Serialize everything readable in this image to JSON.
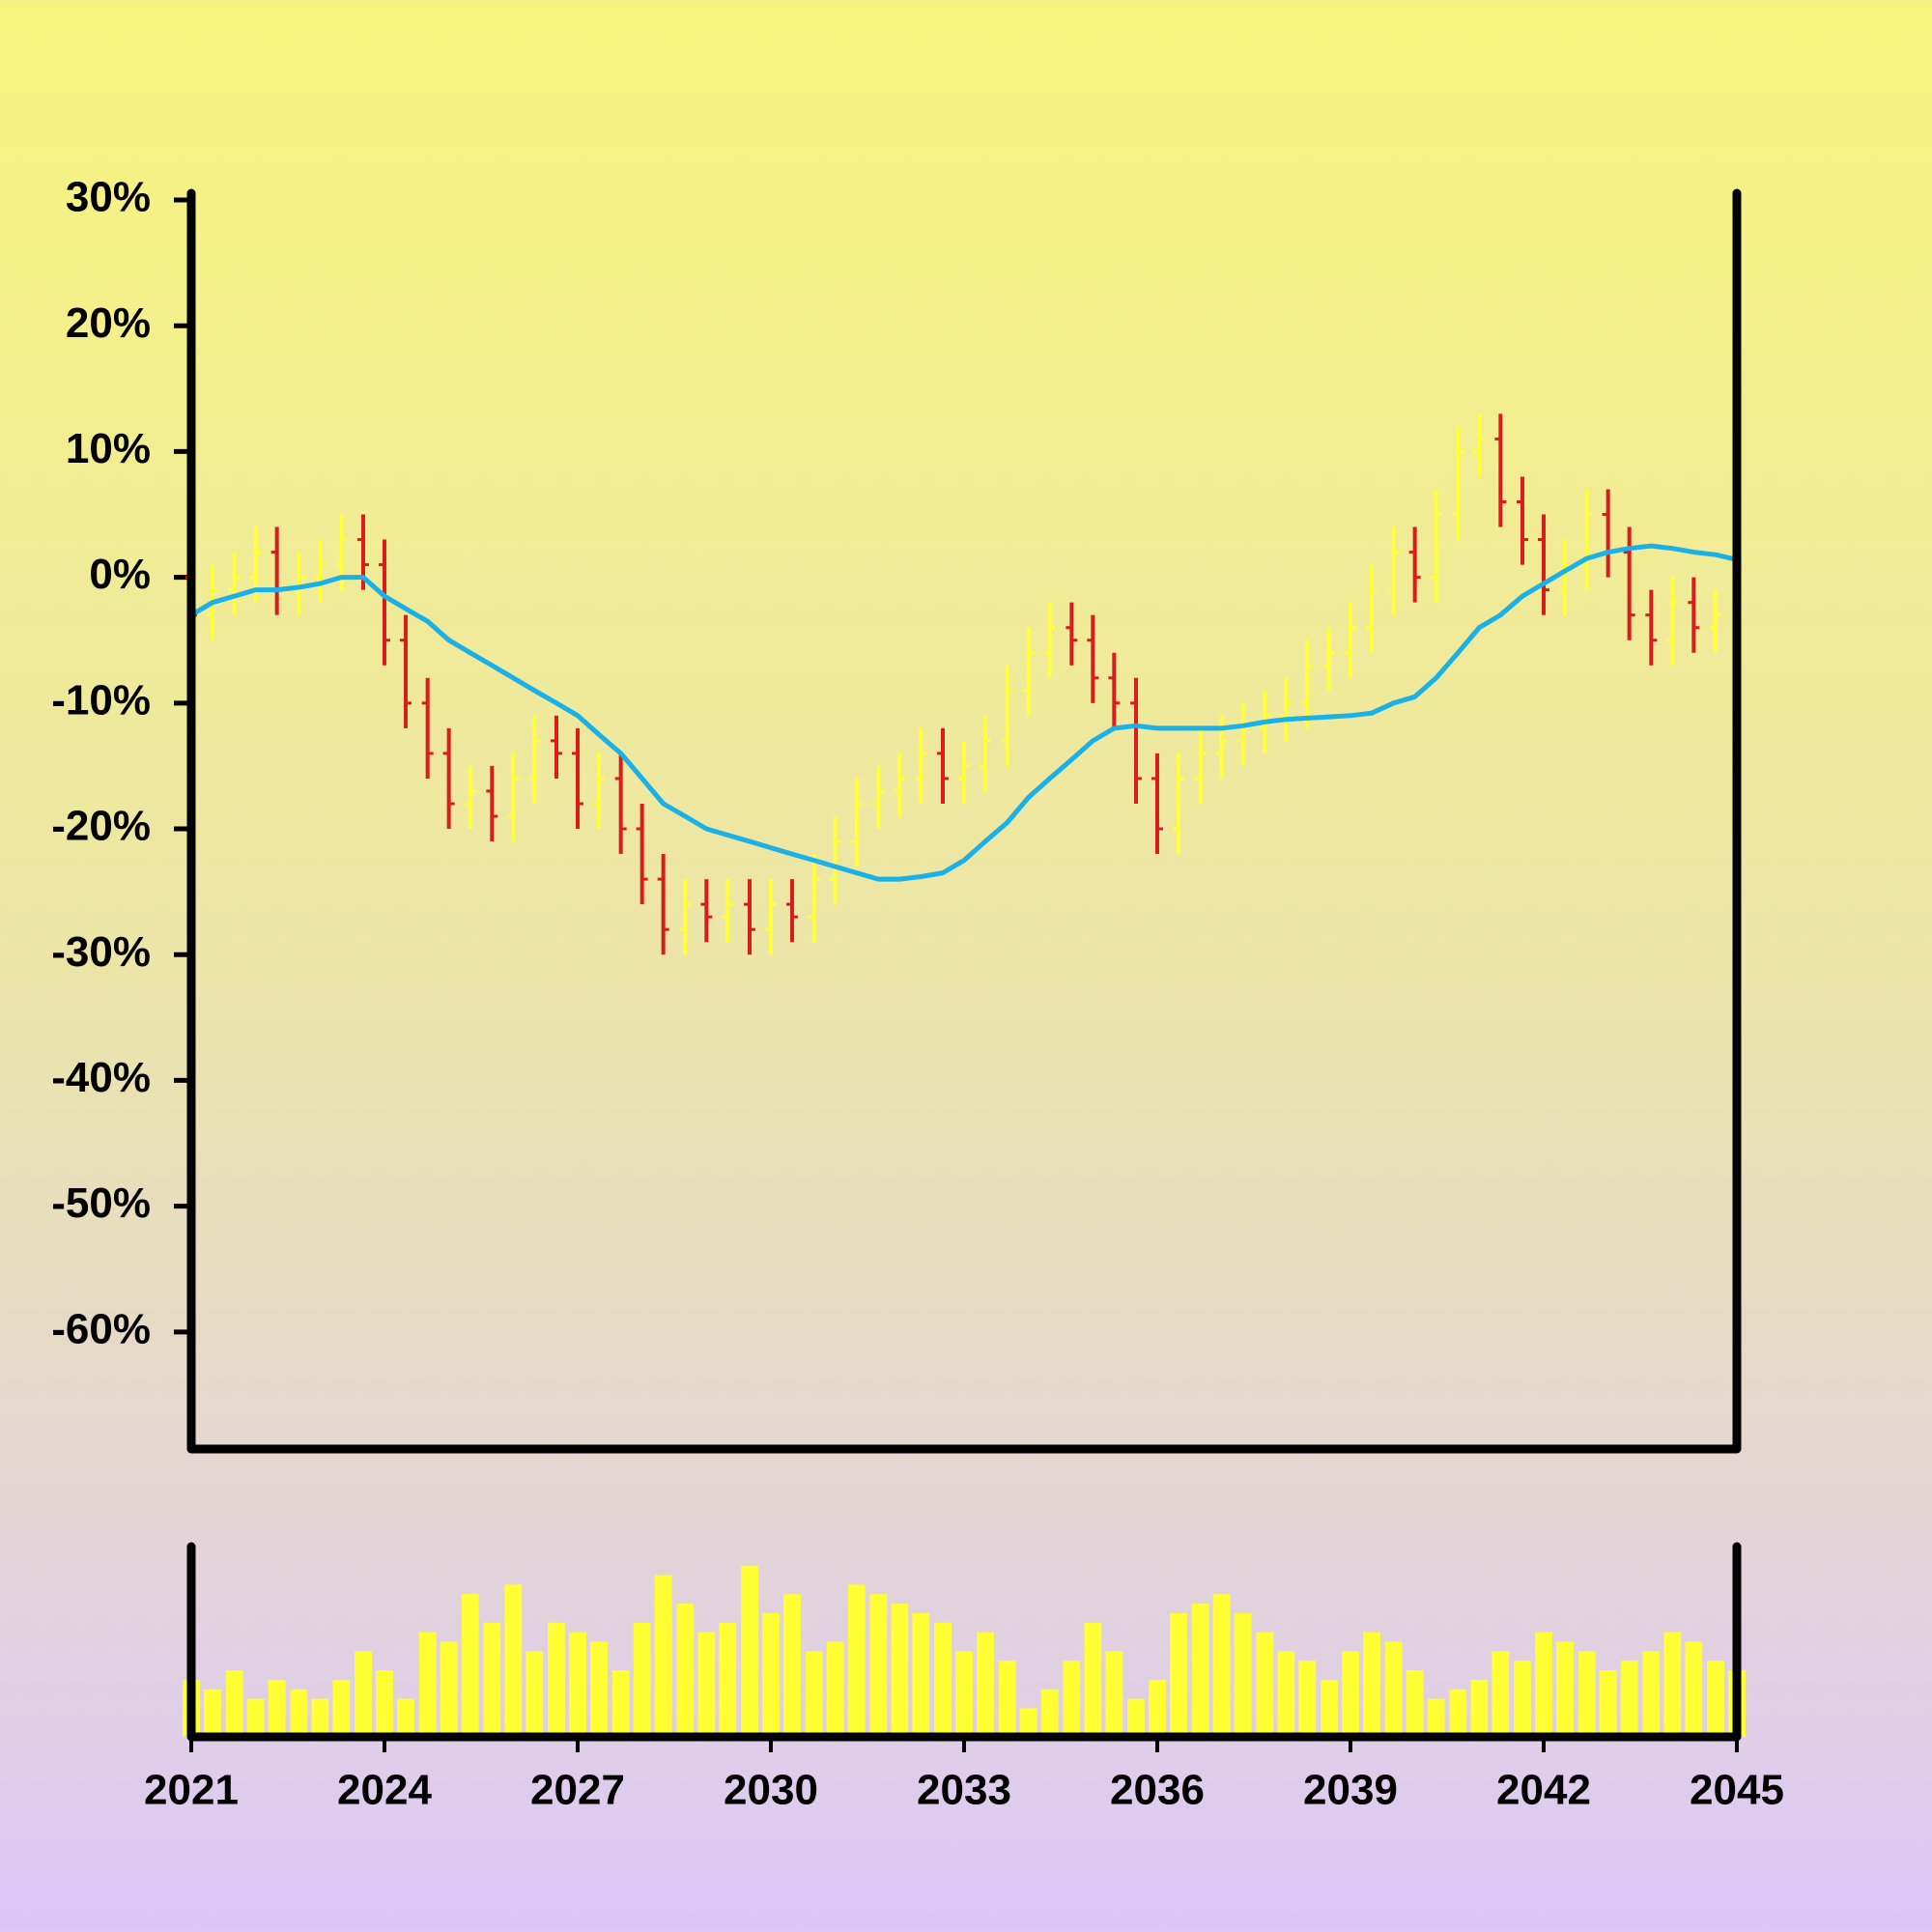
{
  "chart_data": {
    "type": "ohlc",
    "x": [
      2021,
      2021.33,
      2021.67,
      2022,
      2022.33,
      2022.67,
      2023,
      2023.33,
      2023.67,
      2024,
      2024.33,
      2024.67,
      2025,
      2025.33,
      2025.67,
      2026,
      2026.33,
      2026.67,
      2027,
      2027.33,
      2027.67,
      2028,
      2028.33,
      2028.67,
      2029,
      2029.33,
      2029.67,
      2030,
      2030.33,
      2030.67,
      2031,
      2031.33,
      2031.67,
      2032,
      2032.33,
      2032.67,
      2033,
      2033.33,
      2033.67,
      2034,
      2034.33,
      2034.67,
      2035,
      2035.33,
      2035.67,
      2036,
      2036.33,
      2036.67,
      2037,
      2037.33,
      2037.67,
      2038,
      2038.33,
      2038.67,
      2039,
      2039.33,
      2039.67,
      2040,
      2040.33,
      2040.67,
      2041,
      2041.33,
      2041.67,
      2042,
      2042.33,
      2042.67,
      2043,
      2043.33,
      2043.67,
      2044,
      2044.33,
      2044.67,
      2045
    ],
    "open": [
      0,
      -3,
      -1,
      0,
      2,
      -1,
      0,
      1,
      3,
      1,
      -5,
      -10,
      -14,
      -18,
      -17,
      -19,
      -16,
      -13,
      -14,
      -18,
      -16,
      -20,
      -24,
      -28,
      -26,
      -27,
      -26,
      -28,
      -26,
      -27,
      -24,
      -21,
      -18,
      -17,
      -16,
      -14,
      -16,
      -15,
      -13,
      -9,
      -6,
      -4,
      -5,
      -8,
      -10,
      -16,
      -20,
      -16,
      -14,
      -13,
      -12,
      -11,
      -10,
      -7,
      -6,
      -4,
      -1,
      2,
      0,
      5,
      10,
      11,
      6,
      3,
      -1,
      1,
      5,
      2,
      -3,
      -5,
      -2,
      -4,
      -3
    ],
    "high": [
      2,
      1,
      2,
      4,
      4,
      2,
      3,
      5,
      5,
      3,
      -3,
      -8,
      -12,
      -15,
      -15,
      -14,
      -11,
      -11,
      -12,
      -14,
      -14,
      -18,
      -22,
      -24,
      -24,
      -24,
      -24,
      -24,
      -24,
      -22,
      -19,
      -16,
      -15,
      -14,
      -12,
      -12,
      -13,
      -11,
      -7,
      -4,
      -2,
      -2,
      -3,
      -6,
      -8,
      -14,
      -14,
      -12,
      -11,
      -10,
      -9,
      -8,
      -5,
      -4,
      -2,
      1,
      4,
      4,
      7,
      12,
      13,
      13,
      8,
      5,
      3,
      7,
      7,
      4,
      -1,
      0,
      0,
      -1,
      -1
    ],
    "low": [
      -5,
      -5,
      -3,
      -2,
      -3,
      -3,
      -2,
      -1,
      -1,
      -7,
      -12,
      -16,
      -20,
      -20,
      -21,
      -21,
      -18,
      -16,
      -20,
      -20,
      -22,
      -26,
      -30,
      -30,
      -29,
      -29,
      -30,
      -30,
      -29,
      -29,
      -26,
      -23,
      -20,
      -19,
      -18,
      -18,
      -18,
      -17,
      -15,
      -11,
      -8,
      -7,
      -10,
      -12,
      -18,
      -22,
      -22,
      -18,
      -16,
      -15,
      -14,
      -13,
      -12,
      -9,
      -8,
      -6,
      -3,
      -2,
      -2,
      3,
      8,
      4,
      1,
      -3,
      -3,
      -1,
      0,
      -5,
      -7,
      -7,
      -6,
      -6,
      -5
    ],
    "close": [
      -3,
      -1,
      0,
      2,
      -1,
      0,
      1,
      3,
      1,
      -5,
      -10,
      -14,
      -18,
      -17,
      -19,
      -16,
      -13,
      -14,
      -18,
      -16,
      -20,
      -24,
      -28,
      -26,
      -27,
      -26,
      -28,
      -26,
      -27,
      -24,
      -21,
      -18,
      -17,
      -16,
      -14,
      -16,
      -15,
      -13,
      -9,
      -6,
      -4,
      -5,
      -8,
      -10,
      -16,
      -20,
      -16,
      -14,
      -13,
      -12,
      -11,
      -10,
      -7,
      -6,
      -4,
      -1,
      2,
      0,
      5,
      10,
      11,
      6,
      3,
      -1,
      1,
      5,
      2,
      -3,
      -5,
      -2,
      -4,
      -3,
      -3
    ],
    "up_color": "#ffff3c",
    "down_color": "#d91c1c",
    "moving_average": {
      "color": "#1ab0e8",
      "values": [
        -3,
        -2,
        -1.5,
        -1,
        -1,
        -0.8,
        -0.5,
        0,
        0,
        -1.5,
        -2.5,
        -3.5,
        -5,
        -6,
        -7,
        -8,
        -9,
        -10,
        -11,
        -12.5,
        -14,
        -16,
        -18,
        -19,
        -20,
        -20.5,
        -21,
        -21.5,
        -22,
        -22.5,
        -23,
        -23.5,
        -24,
        -24,
        -23.8,
        -23.5,
        -22.5,
        -21,
        -19.5,
        -17.5,
        -16,
        -14.5,
        -13,
        -12,
        -11.8,
        -12,
        -12,
        -12,
        -12,
        -11.8,
        -11.5,
        -11.3,
        -11.2,
        -11.1,
        -11,
        -10.8,
        -10,
        -9.5,
        -8,
        -6,
        -4,
        -3,
        -1.5,
        -0.5,
        0.5,
        1.5,
        2,
        2.3,
        2.5,
        2.3,
        2,
        1.8,
        1.4
      ]
    },
    "volume": {
      "color": "#ffff33",
      "ylim": [
        0,
        100
      ],
      "values": [
        30,
        25,
        35,
        20,
        30,
        25,
        20,
        30,
        45,
        35,
        20,
        55,
        50,
        75,
        60,
        80,
        45,
        60,
        55,
        50,
        35,
        60,
        85,
        70,
        55,
        60,
        90,
        65,
        75,
        45,
        50,
        80,
        75,
        70,
        65,
        60,
        45,
        55,
        40,
        15,
        25,
        40,
        60,
        45,
        20,
        30,
        65,
        70,
        75,
        65,
        55,
        45,
        40,
        30,
        45,
        55,
        50,
        35,
        20,
        25,
        30,
        45,
        40,
        55,
        50,
        45,
        35,
        40,
        45,
        55,
        50,
        40,
        35
      ]
    },
    "xlim": [
      2021,
      2045
    ],
    "xticks": [
      2021,
      2024,
      2027,
      2030,
      2033,
      2036,
      2039,
      2042,
      2045
    ],
    "ylim": [
      -69,
      31
    ],
    "yticks": [
      {
        "value": 30,
        "label": "30%"
      },
      {
        "value": 20,
        "label": "20%"
      },
      {
        "value": 10,
        "label": "10%"
      },
      {
        "value": 0,
        "label": "0%"
      },
      {
        "value": -10,
        "label": "-10%"
      },
      {
        "value": -20,
        "label": "-20%"
      },
      {
        "value": -30,
        "label": "-30%"
      },
      {
        "value": -40,
        "label": "-40%"
      },
      {
        "value": -50,
        "label": "-50%"
      },
      {
        "value": -60,
        "label": "-60%"
      }
    ]
  }
}
